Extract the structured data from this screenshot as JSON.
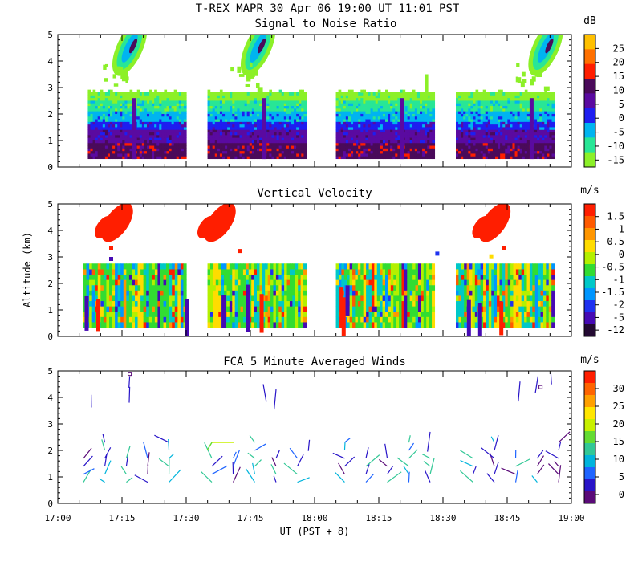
{
  "header": {
    "title": "T-REX  MAPR 30 Apr 06  19:00 UT  11:01  PST"
  },
  "axes": {
    "ylabel": "Altitude (km)",
    "xlabel": "UT  (PST + 8)",
    "xticks": [
      "17:00",
      "17:15",
      "17:30",
      "17:45",
      "18:00",
      "18:15",
      "18:30",
      "18:45",
      "19:00"
    ],
    "yticks": [
      "0",
      "1",
      "2",
      "3",
      "4",
      "5"
    ]
  },
  "chart_data": [
    {
      "type": "heatmap",
      "title": "Signal to Noise Ratio",
      "xlabel": "UT  (PST + 8)",
      "ylabel": "Altitude (km)",
      "x_range_hours": [
        17.0,
        19.0
      ],
      "ylim": [
        0,
        5
      ],
      "colorbar": {
        "unit": "dB",
        "ticks": [
          "25",
          "20",
          "15",
          "10",
          "5",
          "0",
          "-5",
          "-10",
          "-15"
        ],
        "colors": [
          "#ffc000",
          "#ff7000",
          "#ff1e00",
          "#4a0a5a",
          "#5a0aa0",
          "#1e1ef0",
          "#00b4f0",
          "#28e696",
          "#8cf028"
        ]
      },
      "sampling_blocks_hours": [
        [
          17.117,
          17.5
        ],
        [
          17.583,
          17.967
        ],
        [
          18.083,
          18.467
        ],
        [
          18.55,
          18.933
        ]
      ]
    },
    {
      "type": "heatmap",
      "title": "Vertical Velocity",
      "xlabel": "UT  (PST + 8)",
      "ylabel": "Altitude (km)",
      "x_range_hours": [
        17.0,
        19.0
      ],
      "ylim": [
        0,
        5
      ],
      "colorbar": {
        "unit": "m/s",
        "ticks": [
          "1.5",
          "1",
          "0.5",
          "0",
          "-0.5",
          "-1",
          "-1.5",
          "-2",
          "-5",
          "-12"
        ],
        "colors": [
          "#ff1e00",
          "#ff5a00",
          "#ff9600",
          "#ffdc00",
          "#b4f000",
          "#32dc32",
          "#00c8c8",
          "#0096ff",
          "#1e32f0",
          "#460ab4",
          "#230a32"
        ]
      },
      "sampling_blocks_hours": [
        [
          17.1,
          17.5
        ],
        [
          17.583,
          17.967
        ],
        [
          18.083,
          18.467
        ],
        [
          18.55,
          18.933
        ]
      ]
    },
    {
      "type": "scatter",
      "title": "FCA 5 Minute Averaged Winds",
      "xlabel": "UT  (PST + 8)",
      "ylabel": "Altitude (km)",
      "x_range_hours": [
        17.0,
        19.0
      ],
      "ylim": [
        0,
        5
      ],
      "colorbar": {
        "unit": "m/s",
        "ticks": [
          "30",
          "25",
          "20",
          "15",
          "10",
          "5",
          "0"
        ],
        "colors": [
          "#ff1e00",
          "#ff6400",
          "#ffa000",
          "#ffe600",
          "#c8f000",
          "#64dc32",
          "#32c896",
          "#00b4dc",
          "#1e64ff",
          "#2814c8",
          "#5a0a78"
        ]
      },
      "profiles_time_hours": [
        17.1,
        17.183,
        17.267,
        17.35,
        17.433,
        17.6,
        17.683,
        17.767,
        17.85,
        17.933,
        18.117,
        18.2,
        18.283,
        18.367,
        18.45,
        18.617,
        18.7,
        18.783,
        18.867,
        18.95
      ]
    }
  ]
}
